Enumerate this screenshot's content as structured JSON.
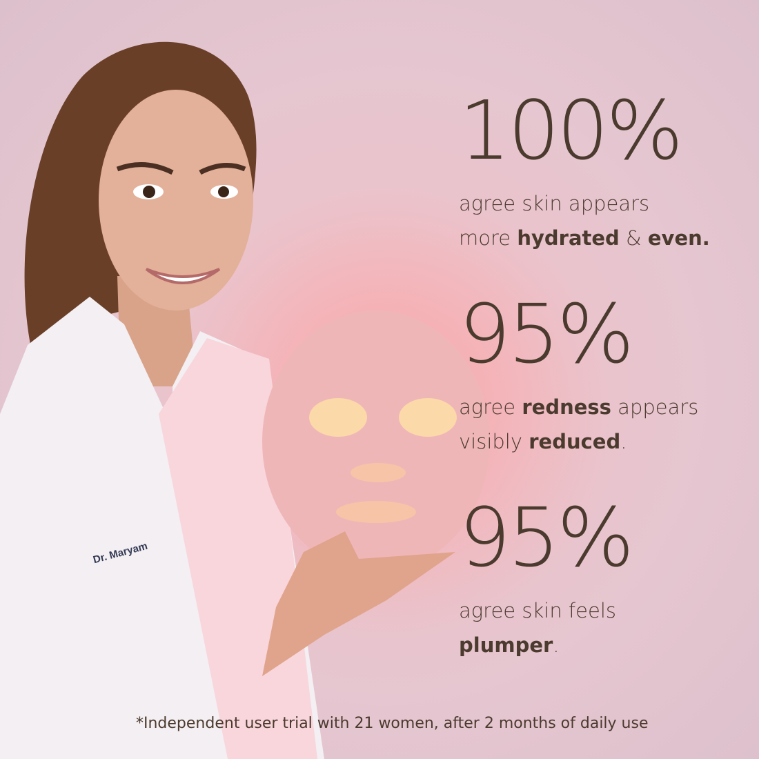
{
  "stats": [
    {
      "value": "100%",
      "line1": "agree skin appears",
      "line2_pre": "more ",
      "line2_b1": "hydrated",
      "line2_mid": " & ",
      "line2_b2": "even.",
      "line2_post": ""
    },
    {
      "value": "95%",
      "line1_pre": "agree ",
      "line1_b": "redness",
      "line1_post": " appears",
      "line2_pre": "visibly ",
      "line2_b": "reduced",
      "line2_post": "."
    },
    {
      "value": "95%",
      "line1": "agree skin feels",
      "line2_b": "plumper",
      "line2_post": "."
    }
  ],
  "coat_embroidery": "Dr. Maryam",
  "footnote": "*Independent user trial with 21 women, after 2 months of daily use",
  "colors": {
    "text": "#4b3a2e",
    "background": "#e8c4cc",
    "mask": "#f0b8bc",
    "glow": "#fbd9a8"
  }
}
